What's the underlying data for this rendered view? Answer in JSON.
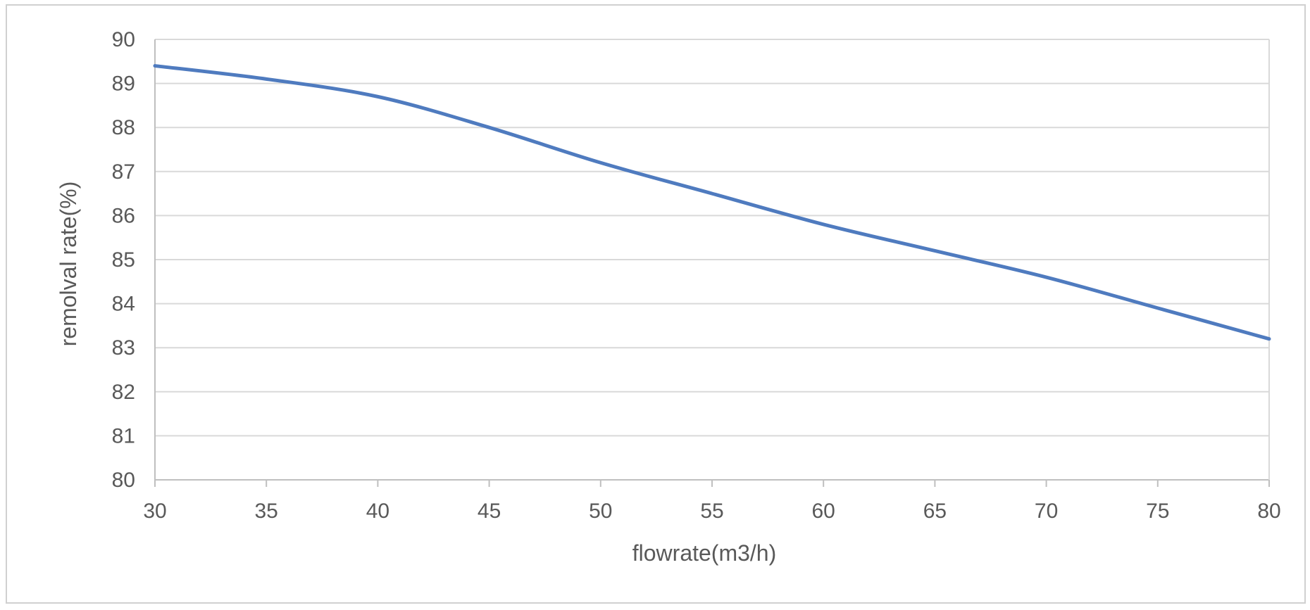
{
  "chart_data": {
    "type": "line",
    "title": "",
    "xlabel": "flowrate(m3/h)",
    "ylabel": "remolval rate(%)",
    "xlim": [
      30,
      80
    ],
    "ylim": [
      80,
      90
    ],
    "x_ticks": [
      "30",
      "35",
      "40",
      "45",
      "50",
      "55",
      "60",
      "65",
      "70",
      "75",
      "80"
    ],
    "y_ticks": [
      "80",
      "81",
      "82",
      "83",
      "84",
      "85",
      "86",
      "87",
      "88",
      "89",
      "90"
    ],
    "grid": "horizontal",
    "legend": "none",
    "series": [
      {
        "color": "#4f7bbf",
        "x": [
          30,
          35,
          40,
          45,
          50,
          55,
          60,
          65,
          70,
          75,
          80
        ],
        "y": [
          89.4,
          89.1,
          88.7,
          88.0,
          87.2,
          86.5,
          85.8,
          85.2,
          84.6,
          83.9,
          83.2
        ]
      }
    ]
  }
}
